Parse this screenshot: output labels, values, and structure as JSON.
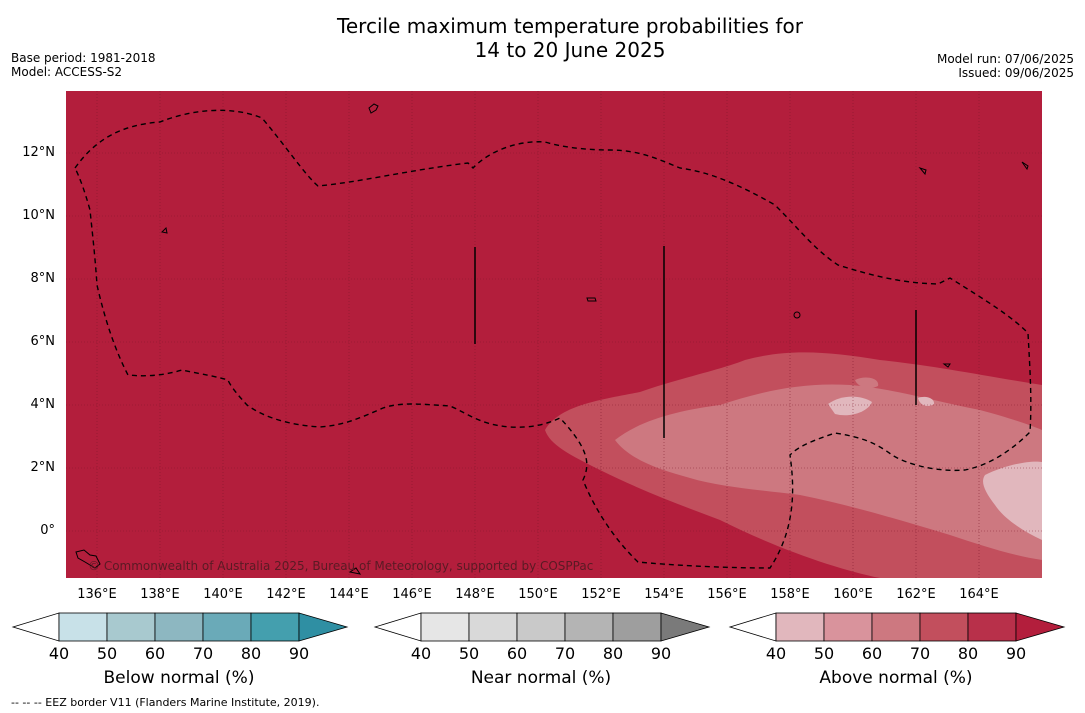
{
  "title_line1": "Tercile maximum temperature probabilities for",
  "title_line2": "14 to 20 June 2025",
  "base_period": "Base period: 1981-2018",
  "model": "Model: ACCESS-S2",
  "model_run": "Model run: 07/06/2025",
  "issued": "Issued: 09/06/2025",
  "copyright": "© Commonwealth of Australia 2025, Bureau of Meteorology, supported by COSPPac",
  "footnote": "--  --  -- EEZ border V11 (Flanders Marine Institute, 2019).",
  "lat_labels": [
    "12°N",
    "10°N",
    "8°N",
    "6°N",
    "4°N",
    "2°N",
    "0°"
  ],
  "lon_labels": [
    "136°E",
    "138°E",
    "140°E",
    "142°E",
    "144°E",
    "146°E",
    "148°E",
    "150°E",
    "152°E",
    "154°E",
    "156°E",
    "158°E",
    "160°E",
    "162°E",
    "164°E"
  ],
  "colorbars": [
    {
      "title": "Below normal (%)",
      "ticks": [
        "40",
        "50",
        "60",
        "70",
        "80",
        "90"
      ],
      "colors": [
        "#ffffff",
        "#c8e1e8",
        "#a8c9cf",
        "#8db7c1",
        "#6aaab8",
        "#449fae",
        "#2f8fa3"
      ]
    },
    {
      "title": "Near normal (%)",
      "ticks": [
        "40",
        "50",
        "60",
        "70",
        "80",
        "90"
      ],
      "colors": [
        "#ffffff",
        "#e6e6e6",
        "#d9d9d9",
        "#c9c9c9",
        "#b4b4b4",
        "#9e9e9e",
        "#7a7a7a"
      ]
    },
    {
      "title": "Above normal (%)",
      "ticks": [
        "40",
        "50",
        "60",
        "70",
        "80",
        "90"
      ],
      "colors": [
        "#ffffff",
        "#e1b7bd",
        "#d9939c",
        "#cd7880",
        "#c24f5d",
        "#b8304a",
        "#b31e3c"
      ]
    }
  ],
  "map_colors": {
    "base": "#b31e3c",
    "band70": "#c24f5d",
    "band60": "#cd7880",
    "band50": "#e1b7bd"
  }
}
